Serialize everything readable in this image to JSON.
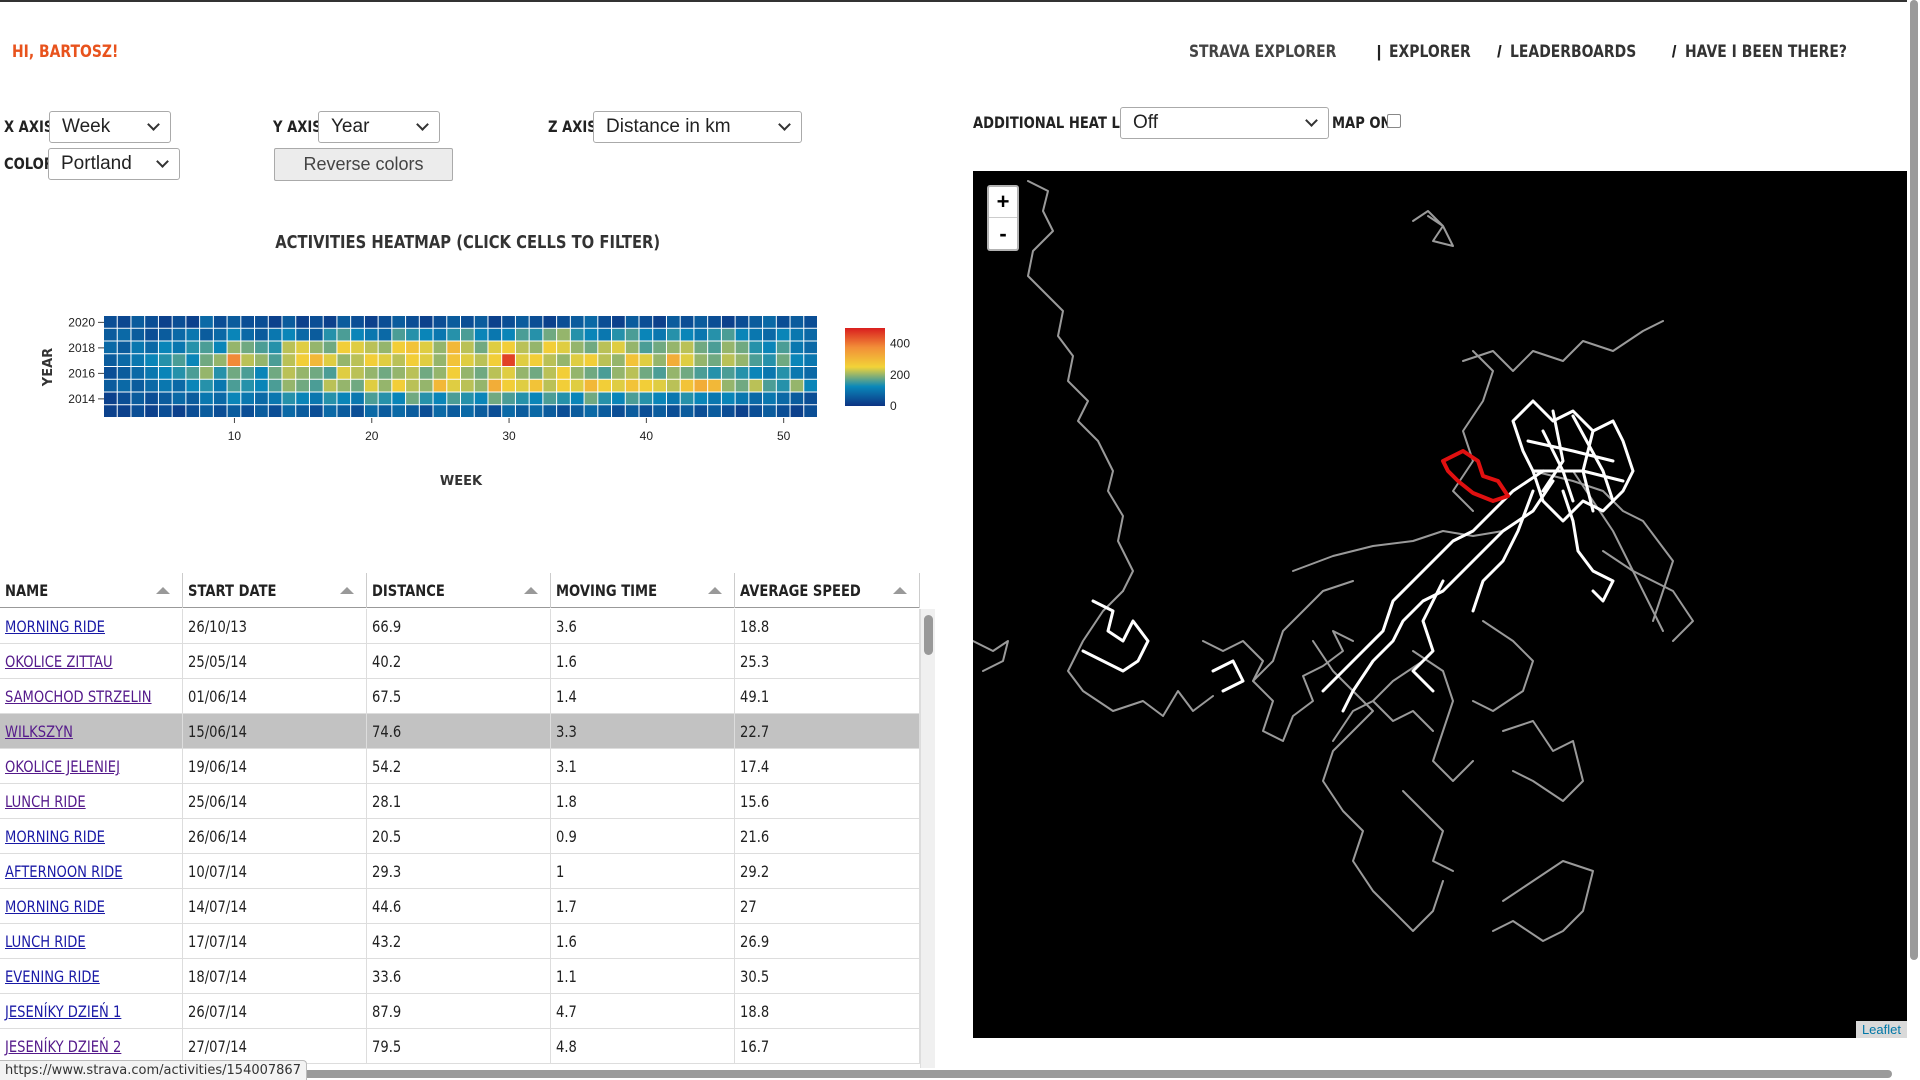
{
  "greeting": "HI, BARTOSZ!",
  "nav": {
    "brand": "STRAVA EXPLORER",
    "sep1": "|",
    "explorer": "EXPLORER",
    "sep2": "/",
    "leaderboards": "LEADERBOARDS",
    "sep3": "/",
    "have_i_been_there": "HAVE I BEEN THERE?"
  },
  "controls": {
    "x_axis_label": "X AXIS:",
    "x_axis_value": "Week",
    "y_axis_label": "Y AXIS:",
    "y_axis_value": "Year",
    "z_axis_label": "Z AXIS:",
    "z_axis_value": "Distance in km",
    "color_label": "COLOR:",
    "color_value": "Portland",
    "reverse_colors": "Reverse colors",
    "heat_layer_label": "ADDITIONAL HEAT LAYER:",
    "heat_layer_value": "Off",
    "map_on_label": "MAP ON"
  },
  "chart_data": {
    "type": "heatmap",
    "title": "ACTIVITIES HEATMAP (CLICK CELLS TO FILTER)",
    "xlabel": "WEEK",
    "ylabel": "YEAR",
    "x_ticks": [
      "10",
      "20",
      "30",
      "40",
      "50"
    ],
    "y_ticks": [
      "2014",
      "2016",
      "2018",
      "2020"
    ],
    "x_range": [
      1,
      52
    ],
    "y_range": [
      2013,
      2020
    ],
    "colorscale": "Portland",
    "colorbar_ticks": [
      "0",
      "200",
      "400"
    ],
    "zlim": [
      0,
      500
    ],
    "years": [
      2020,
      2019,
      2018,
      2017,
      2016,
      2015,
      2014,
      2013
    ],
    "z": [
      [
        40,
        30,
        60,
        40,
        20,
        40,
        20,
        80,
        40,
        60,
        40,
        40,
        20,
        60,
        20,
        40,
        20,
        60,
        40,
        20,
        40,
        60,
        40,
        20,
        40,
        60,
        40,
        60,
        20,
        40,
        60,
        40,
        20,
        40,
        60,
        80,
        40,
        20,
        60,
        40,
        20,
        60,
        40,
        60,
        40,
        20,
        40,
        60,
        80,
        40,
        60,
        40
      ],
      [
        60,
        80,
        60,
        40,
        60,
        80,
        100,
        60,
        80,
        120,
        80,
        60,
        100,
        120,
        80,
        60,
        140,
        160,
        120,
        100,
        80,
        160,
        140,
        120,
        100,
        140,
        160,
        120,
        100,
        120,
        160,
        140,
        180,
        200,
        140,
        120,
        100,
        140,
        160,
        120,
        100,
        140,
        120,
        100,
        140,
        160,
        120,
        100,
        80,
        120,
        100,
        80
      ],
      [
        80,
        60,
        100,
        80,
        120,
        100,
        140,
        160,
        120,
        200,
        180,
        160,
        140,
        220,
        240,
        200,
        180,
        260,
        240,
        220,
        200,
        260,
        280,
        240,
        200,
        300,
        220,
        180,
        240,
        260,
        220,
        200,
        260,
        240,
        200,
        180,
        220,
        240,
        200,
        160,
        180,
        200,
        220,
        180,
        160,
        200,
        180,
        140,
        120,
        160,
        100,
        80
      ],
      [
        60,
        80,
        100,
        120,
        140,
        160,
        120,
        180,
        200,
        380,
        220,
        200,
        160,
        220,
        260,
        300,
        240,
        200,
        220,
        260,
        240,
        220,
        260,
        240,
        200,
        280,
        240,
        220,
        260,
        460,
        240,
        260,
        220,
        200,
        240,
        260,
        220,
        200,
        280,
        240,
        200,
        320,
        240,
        200,
        180,
        220,
        200,
        160,
        140,
        180,
        120,
        100
      ],
      [
        40,
        60,
        80,
        100,
        120,
        140,
        160,
        200,
        140,
        180,
        160,
        120,
        180,
        220,
        200,
        180,
        160,
        240,
        220,
        200,
        180,
        200,
        220,
        180,
        200,
        260,
        200,
        180,
        220,
        240,
        200,
        180,
        220,
        260,
        200,
        180,
        160,
        200,
        220,
        180,
        160,
        200,
        180,
        160,
        140,
        160,
        140,
        120,
        100,
        140,
        100,
        80
      ],
      [
        60,
        80,
        60,
        80,
        100,
        80,
        120,
        140,
        100,
        160,
        140,
        120,
        160,
        200,
        180,
        160,
        220,
        200,
        180,
        240,
        200,
        260,
        220,
        200,
        300,
        240,
        220,
        200,
        320,
        260,
        240,
        280,
        220,
        260,
        240,
        300,
        260,
        240,
        280,
        260,
        240,
        220,
        280,
        320,
        300,
        200,
        180,
        220,
        160,
        140,
        200,
        120
      ],
      [
        20,
        40,
        60,
        40,
        60,
        80,
        60,
        100,
        80,
        120,
        100,
        80,
        100,
        140,
        120,
        100,
        140,
        120,
        100,
        160,
        140,
        120,
        180,
        140,
        120,
        160,
        140,
        120,
        180,
        160,
        140,
        120,
        160,
        140,
        120,
        180,
        140,
        120,
        160,
        140,
        120,
        100,
        140,
        120,
        100,
        120,
        100,
        80,
        100,
        80,
        60,
        40
      ],
      [
        20,
        20,
        40,
        20,
        40,
        20,
        40,
        60,
        40,
        60,
        40,
        60,
        40,
        80,
        60,
        40,
        80,
        60,
        40,
        80,
        60,
        80,
        60,
        40,
        80,
        60,
        80,
        60,
        40,
        80,
        60,
        80,
        60,
        40,
        60,
        80,
        60,
        40,
        60,
        40,
        60,
        40,
        60,
        40,
        60,
        40,
        20,
        40,
        60,
        40,
        20,
        40
      ]
    ]
  },
  "table": {
    "columns": [
      "NAME",
      "START DATE",
      "DISTANCE",
      "MOVING TIME",
      "AVERAGE SPEED"
    ],
    "rows": [
      {
        "name": "MORNING RIDE",
        "date": "26/10/13",
        "distance": "66.9",
        "time": "3.6",
        "speed": "18.8",
        "visited": false,
        "selected": false
      },
      {
        "name": "OKOLICE ZITTAU",
        "date": "25/05/14",
        "distance": "40.2",
        "time": "1.6",
        "speed": "25.3",
        "visited": true,
        "selected": false
      },
      {
        "name": "SAMOCHOD STRZELIN",
        "date": "01/06/14",
        "distance": "67.5",
        "time": "1.4",
        "speed": "49.1",
        "visited": true,
        "selected": false
      },
      {
        "name": "WILKSZYN",
        "date": "15/06/14",
        "distance": "74.6",
        "time": "3.3",
        "speed": "22.7",
        "visited": true,
        "selected": true
      },
      {
        "name": "OKOLICE JELENIEJ",
        "date": "19/06/14",
        "distance": "54.2",
        "time": "3.1",
        "speed": "17.4",
        "visited": true,
        "selected": false
      },
      {
        "name": "LUNCH RIDE",
        "date": "25/06/14",
        "distance": "28.1",
        "time": "1.8",
        "speed": "15.6",
        "visited": true,
        "selected": false
      },
      {
        "name": "MORNING RIDE",
        "date": "26/06/14",
        "distance": "20.5",
        "time": "0.9",
        "speed": "21.6",
        "visited": false,
        "selected": false
      },
      {
        "name": "AFTERNOON RIDE",
        "date": "10/07/14",
        "distance": "29.3",
        "time": "1",
        "speed": "29.2",
        "visited": false,
        "selected": false
      },
      {
        "name": "MORNING RIDE",
        "date": "14/07/14",
        "distance": "44.6",
        "time": "1.7",
        "speed": "27",
        "visited": false,
        "selected": false
      },
      {
        "name": "LUNCH RIDE",
        "date": "17/07/14",
        "distance": "43.2",
        "time": "1.6",
        "speed": "26.9",
        "visited": false,
        "selected": false
      },
      {
        "name": "EVENING RIDE",
        "date": "18/07/14",
        "distance": "33.6",
        "time": "1.1",
        "speed": "30.5",
        "visited": false,
        "selected": false
      },
      {
        "name": "JESENÍKY DZIEŃ 1",
        "date": "26/07/14",
        "distance": "87.9",
        "time": "4.7",
        "speed": "18.8",
        "visited": false,
        "selected": false
      },
      {
        "name": "JESENÍKY DZIEŃ 2",
        "date": "27/07/14",
        "distance": "79.5",
        "time": "4.8",
        "speed": "16.7",
        "visited": true,
        "selected": false
      }
    ]
  },
  "map": {
    "zoom_in": "+",
    "zoom_out": "-",
    "attribution": "Leaflet",
    "highlight_color": "#e01010",
    "route_color": "#ffffff"
  },
  "status_url": "https://www.strava.com/activities/154007867"
}
